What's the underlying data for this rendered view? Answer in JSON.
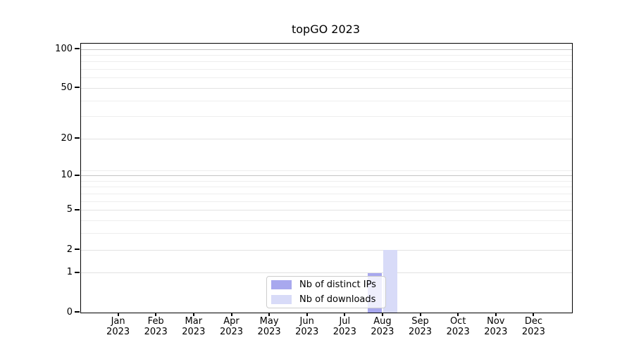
{
  "chart_data": {
    "type": "bar",
    "title": "topGO 2023",
    "categories": [
      "Jan",
      "Feb",
      "Mar",
      "Apr",
      "May",
      "Jun",
      "Jul",
      "Aug",
      "Sep",
      "Oct",
      "Nov",
      "Dec"
    ],
    "year_label": "2023",
    "series": [
      {
        "name": "Nb of distinct IPs",
        "color": "#a8a8ee",
        "values": [
          0,
          0,
          0,
          0,
          0,
          0,
          0,
          1,
          0,
          0,
          0,
          0
        ]
      },
      {
        "name": "Nb of downloads",
        "color": "#d8dbf8",
        "values": [
          0,
          0,
          0,
          0,
          0,
          0,
          0,
          2,
          0,
          0,
          0,
          0
        ]
      }
    ],
    "y_scale": "log1p",
    "ylim": [
      0,
      110
    ],
    "y_major_ticks": [
      0,
      1,
      2,
      5,
      10,
      20,
      50,
      100
    ],
    "y_tick_labels": [
      "0",
      "1",
      "2",
      "5",
      "10",
      "20",
      "50",
      "100"
    ],
    "y_emphasized_gridlines": [
      10,
      100
    ],
    "y_minor_gridlines": [
      3,
      4,
      6,
      7,
      8,
      9,
      11,
      30,
      40,
      60,
      70,
      80,
      90
    ],
    "grid": "horizontal",
    "legend_position": "bottom-center",
    "colors": {
      "grid_major": "#c4c4c4",
      "grid_labeled": "#e2e2e2",
      "grid_minor": "#eeeeee",
      "spine": "#000000",
      "text": "#000000",
      "legend_border": "#cccccc",
      "background": "#ffffff"
    }
  }
}
